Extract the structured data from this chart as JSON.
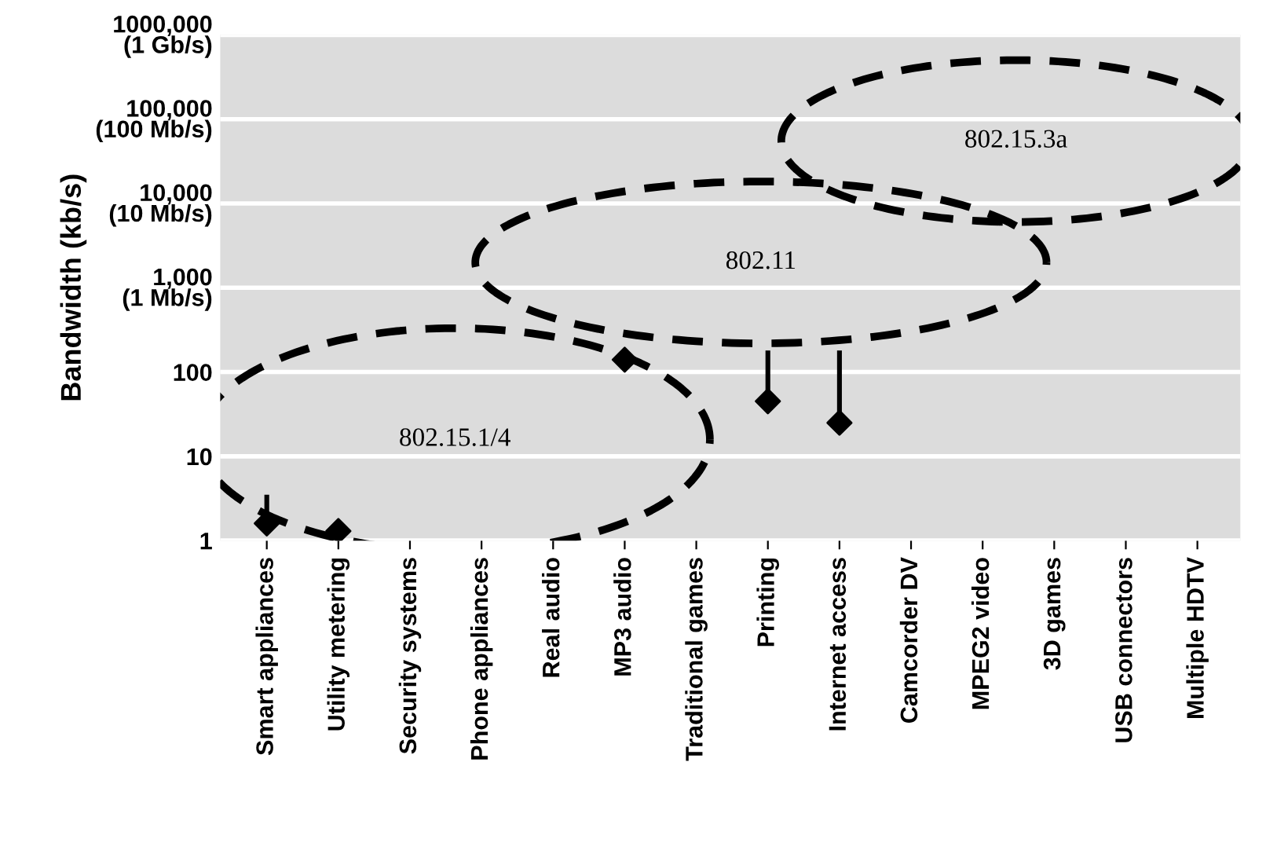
{
  "chart_data": {
    "type": "scatter",
    "ylabel": "Bandwidth (kb/s)",
    "categories": [
      "Smart appliances",
      "Utility metering",
      "Security systems",
      "Phone appliances",
      "Real audio",
      "MP3 audio",
      "Traditional games",
      "Printing",
      "Internet access",
      "Camcorder DV",
      "MPEG2 video",
      "3D games",
      "USB connectors",
      "Multiple HDTV"
    ],
    "values": [
      1.6,
      1.3,
      null,
      null,
      null,
      140,
      null,
      45,
      25,
      null,
      null,
      null,
      null,
      null
    ],
    "errors": [
      [
        1.6,
        3.5
      ],
      null,
      null,
      null,
      null,
      null,
      null,
      [
        45,
        180
      ],
      [
        25,
        180
      ],
      null,
      null,
      null,
      null,
      null
    ],
    "color": "#000000",
    "marker": "diamond",
    "log": "y",
    "ylim": [
      1,
      1000000
    ],
    "yticks": [
      1,
      10,
      100,
      {
        "value": 1000,
        "label": "1,000\n(1 Mb/s)"
      },
      {
        "value": 10000,
        "label": "10,000\n(10 Mb/s)"
      },
      {
        "value": 100000,
        "label": "100,000\n(100 Mb/s)"
      },
      {
        "value": 1000000,
        "label": "1000,000\n(1 Gb/s)"
      }
    ],
    "grid": "y",
    "legend": false,
    "annotations": [
      "802.15.1/4",
      "802.11",
      "802.15.3a"
    ]
  }
}
